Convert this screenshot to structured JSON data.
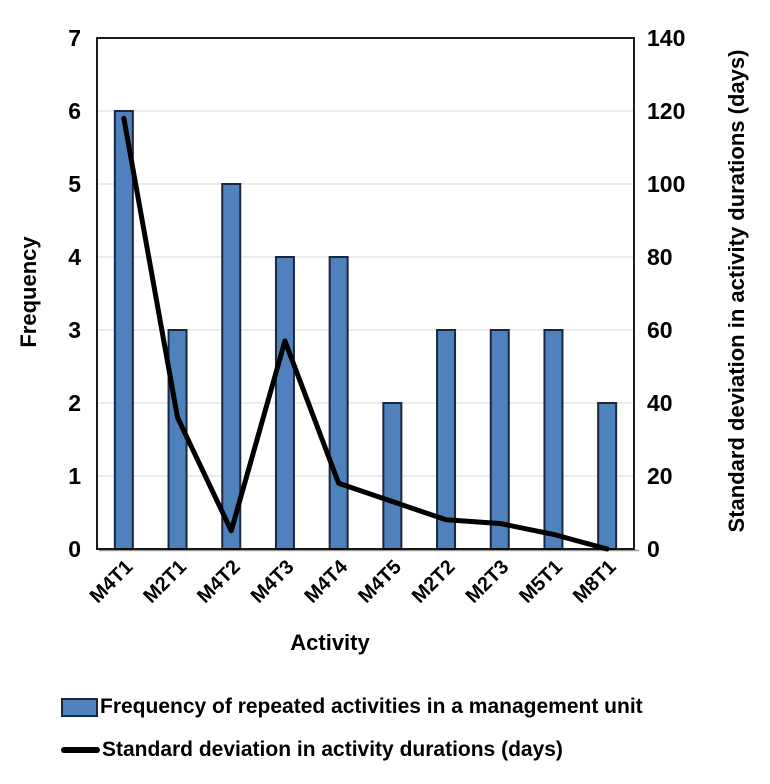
{
  "chart_data": {
    "type": "bar",
    "combo": "bar+line",
    "categories": [
      "M4T1",
      "M2T1",
      "M4T2",
      "M4T3",
      "M4T4",
      "M4T5",
      "M2T2",
      "M2T3",
      "M5T1",
      "M8T1"
    ],
    "series": [
      {
        "name": "Frequency of repeated activities in a management unit",
        "type": "bar",
        "axis": "left",
        "values": [
          6,
          3,
          5,
          4,
          4,
          2,
          3,
          3,
          3,
          2
        ],
        "fill_color": "#4f81bd",
        "border_color": "#1a2740"
      },
      {
        "name": "Standard deviation in activity durations (days)",
        "type": "line",
        "axis": "right",
        "values": [
          118,
          36,
          5,
          57,
          18,
          13,
          8,
          7,
          4,
          0
        ],
        "color": "#000000"
      }
    ],
    "xlabel": "Activity",
    "ylabel_left": "Frequency",
    "ylabel_right": "Standard deviation in activity durations (days)",
    "ylim_left": [
      0,
      7
    ],
    "ylim_right": [
      0,
      140
    ],
    "yticks_left": [
      0,
      1,
      2,
      3,
      4,
      5,
      6,
      7
    ],
    "yticks_right": [
      0,
      20,
      40,
      60,
      80,
      100,
      120,
      140
    ],
    "grid": true,
    "gridline_color": "#d9d9d9",
    "plot_border_color": "#000000",
    "legend_position": "bottom-left"
  }
}
